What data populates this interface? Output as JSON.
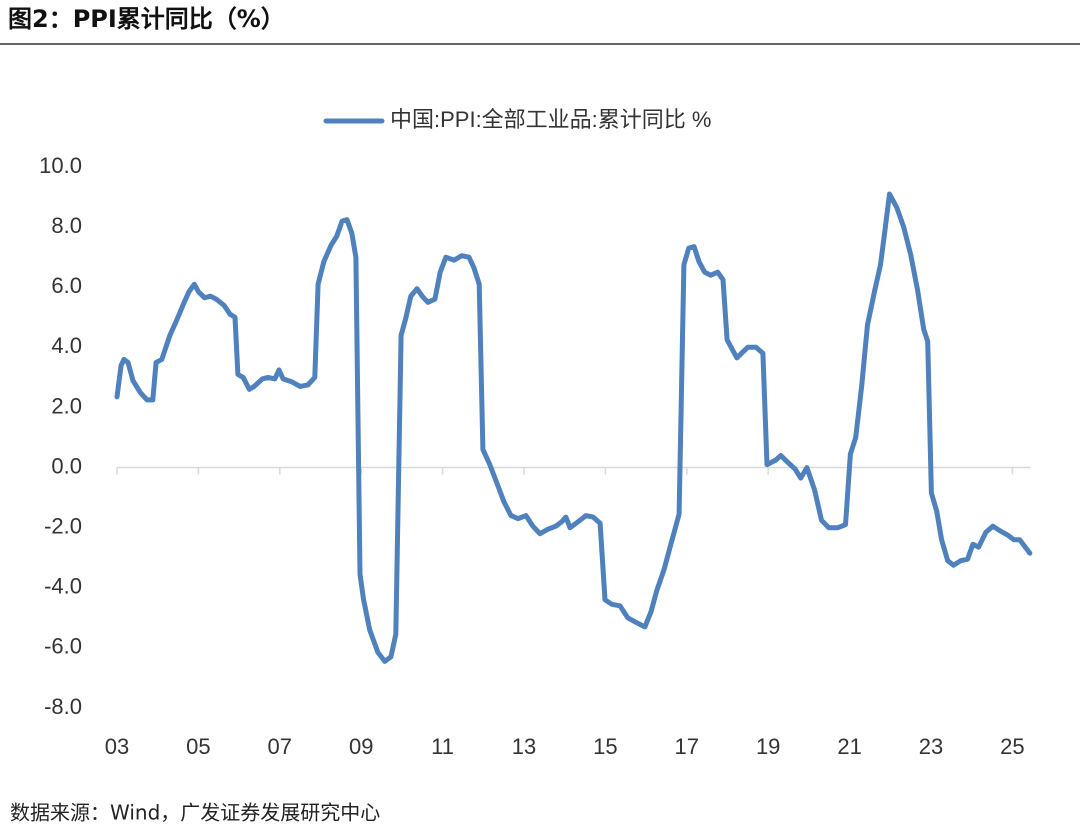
{
  "header": {
    "title": "图2：PPI累计同比（%）"
  },
  "chart_data": {
    "type": "line",
    "x": [
      2003.0,
      2003.1,
      2003.17,
      2003.27,
      2003.39,
      2003.57,
      2003.74,
      2003.88,
      2003.96,
      2004.1,
      2004.3,
      2004.45,
      2004.65,
      2004.77,
      2004.9,
      2005.0,
      2005.15,
      2005.3,
      2005.44,
      2005.63,
      2005.78,
      2005.9,
      2005.97,
      2006.1,
      2006.25,
      2006.37,
      2006.57,
      2006.71,
      2006.88,
      2006.98,
      2007.08,
      2007.3,
      2007.5,
      2007.69,
      2007.86,
      2007.94,
      2008.08,
      2008.26,
      2008.4,
      2008.53,
      2008.65,
      2008.77,
      2008.87,
      2008.97,
      2009.06,
      2009.21,
      2009.41,
      2009.58,
      2009.73,
      2009.85,
      2009.98,
      2010.1,
      2010.22,
      2010.37,
      2010.5,
      2010.64,
      2010.81,
      2010.94,
      2011.08,
      2011.28,
      2011.47,
      2011.65,
      2011.77,
      2011.9,
      2011.99,
      2012.16,
      2012.33,
      2012.51,
      2012.68,
      2012.85,
      2013.05,
      2013.22,
      2013.39,
      2013.59,
      2013.78,
      2013.93,
      2014.03,
      2014.13,
      2014.33,
      2014.52,
      2014.7,
      2014.87,
      2014.99,
      2015.16,
      2015.36,
      2015.55,
      2015.75,
      2015.97,
      2016.12,
      2016.26,
      2016.44,
      2016.61,
      2016.81,
      2016.93,
      2017.05,
      2017.18,
      2017.3,
      2017.44,
      2017.59,
      2017.76,
      2017.89,
      2017.99,
      2018.23,
      2018.38,
      2018.5,
      2018.7,
      2018.87,
      2018.97,
      2019.19,
      2019.31,
      2019.46,
      2019.66,
      2019.8,
      2019.95,
      2020.14,
      2020.31,
      2020.49,
      2020.71,
      2020.9,
      2021.02,
      2021.15,
      2021.3,
      2021.44,
      2021.62,
      2021.76,
      2021.86,
      2021.98,
      2022.16,
      2022.33,
      2022.5,
      2022.67,
      2022.82,
      2022.92,
      2023.01,
      2023.14,
      2023.26,
      2023.41,
      2023.55,
      2023.73,
      2023.9,
      2024.03,
      2024.17,
      2024.35,
      2024.52,
      2024.69,
      2024.89,
      2025.04,
      2025.18,
      2025.43
    ],
    "series": [
      {
        "name": "中国:PPI:全部工业品:累计同比 %",
        "color": "#4f81bd",
        "values": [
          2.35,
          3.4,
          3.6,
          3.5,
          2.9,
          2.5,
          2.25,
          2.25,
          3.5,
          3.6,
          4.4,
          4.85,
          5.5,
          5.85,
          6.1,
          5.85,
          5.65,
          5.7,
          5.6,
          5.4,
          5.1,
          5.0,
          3.1,
          3.0,
          2.6,
          2.7,
          2.95,
          3.0,
          2.95,
          3.25,
          2.95,
          2.85,
          2.7,
          2.75,
          3.0,
          6.1,
          6.85,
          7.4,
          7.7,
          8.2,
          8.25,
          7.8,
          7.0,
          -3.55,
          -4.4,
          -5.4,
          -6.15,
          -6.45,
          -6.3,
          -5.55,
          4.4,
          5.0,
          5.7,
          5.95,
          5.7,
          5.5,
          5.6,
          6.5,
          7.0,
          6.9,
          7.05,
          7.0,
          6.65,
          6.1,
          0.6,
          0.1,
          -0.5,
          -1.15,
          -1.6,
          -1.7,
          -1.6,
          -1.95,
          -2.2,
          -2.05,
          -1.95,
          -1.8,
          -1.65,
          -2.0,
          -1.8,
          -1.6,
          -1.65,
          -1.85,
          -4.4,
          -4.55,
          -4.6,
          -5.0,
          -5.15,
          -5.3,
          -4.8,
          -4.1,
          -3.4,
          -2.55,
          -1.55,
          6.75,
          7.3,
          7.35,
          6.85,
          6.5,
          6.4,
          6.5,
          6.25,
          4.25,
          3.65,
          3.85,
          4.0,
          4.0,
          3.8,
          0.1,
          0.25,
          0.4,
          0.2,
          -0.05,
          -0.35,
          0.0,
          -0.75,
          -1.75,
          -2.0,
          -2.0,
          -1.9,
          0.45,
          1.0,
          2.75,
          4.75,
          5.9,
          6.75,
          7.8,
          9.1,
          8.65,
          8.0,
          7.1,
          5.9,
          4.6,
          4.2,
          -0.85,
          -1.45,
          -2.4,
          -3.1,
          -3.25,
          -3.1,
          -3.05,
          -2.55,
          -2.65,
          -2.15,
          -1.95,
          -2.1,
          -2.25,
          -2.4,
          -2.4,
          -2.85
        ]
      }
    ],
    "xlim": [
      2003,
      2025.45
    ],
    "xticks": [
      {
        "value": 2003,
        "label": "03"
      },
      {
        "value": 2005,
        "label": "05"
      },
      {
        "value": 2007,
        "label": "07"
      },
      {
        "value": 2009,
        "label": "09"
      },
      {
        "value": 2011,
        "label": "11"
      },
      {
        "value": 2013,
        "label": "13"
      },
      {
        "value": 2015,
        "label": "15"
      },
      {
        "value": 2017,
        "label": "17"
      },
      {
        "value": 2019,
        "label": "19"
      },
      {
        "value": 2021,
        "label": "21"
      },
      {
        "value": 2023,
        "label": "23"
      },
      {
        "value": 2025,
        "label": "25"
      }
    ],
    "ylim": [
      -8,
      10
    ],
    "yticks": [
      {
        "value": 10,
        "label": "10.0"
      },
      {
        "value": 8,
        "label": "8.0"
      },
      {
        "value": 6,
        "label": "6.0"
      },
      {
        "value": 4,
        "label": "4.0"
      },
      {
        "value": 2,
        "label": "2.0"
      },
      {
        "value": 0,
        "label": "0.0"
      },
      {
        "value": -2,
        "label": "-2.0"
      },
      {
        "value": -4,
        "label": "-4.0"
      },
      {
        "value": -6,
        "label": "-6.0"
      },
      {
        "value": -8,
        "label": "-8.0"
      }
    ],
    "legend": "top"
  },
  "footer": {
    "source": "数据来源：Wind，广发证券发展研究中心"
  }
}
